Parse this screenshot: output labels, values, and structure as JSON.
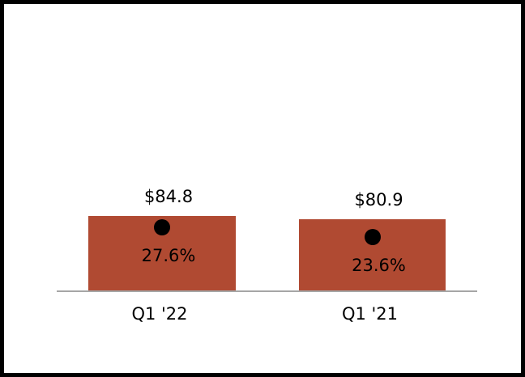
{
  "chart_data": {
    "type": "bar",
    "categories": [
      "Q1 '22",
      "Q1 '21"
    ],
    "series": [
      {
        "id": "bar-values",
        "type": "bar",
        "values": [
          84.8,
          80.9
        ],
        "labels": [
          "$84.8",
          "$80.9"
        ]
      },
      {
        "id": "dot-values",
        "type": "scatter",
        "values": [
          27.6,
          23.6
        ],
        "labels": [
          "27.6%",
          "23.6%"
        ]
      }
    ],
    "colors": {
      "bar": "#B04A32",
      "dot": "#000000",
      "axis_line": "#A6A6A6",
      "text": "#000000",
      "frame_border": "#000000",
      "background": "#FFFFFF"
    },
    "legend": "none",
    "gridlines": false,
    "title": "",
    "xlabel": "",
    "ylabel": ""
  }
}
